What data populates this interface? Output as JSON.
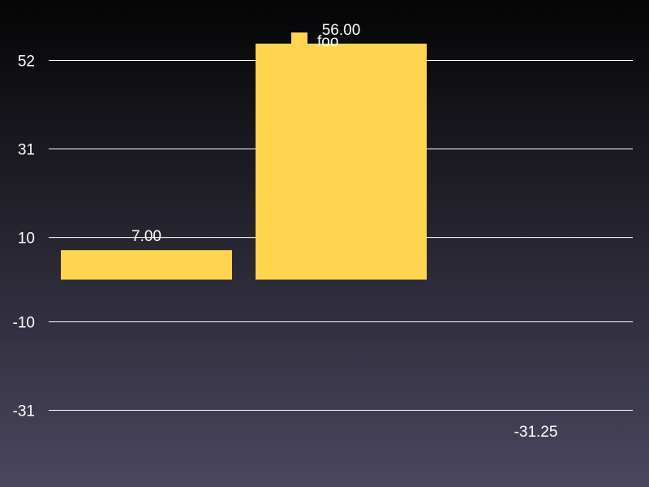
{
  "chart_data": {
    "type": "bar",
    "categories": [
      "",
      "",
      ""
    ],
    "series": [
      {
        "name": "foo",
        "values": [
          7.0,
          56.0,
          -31.25
        ],
        "value_labels": [
          "7.00",
          "56.00",
          "-31.25"
        ],
        "color": "#FFD54F"
      }
    ],
    "yticks": [
      52,
      31,
      10,
      -10,
      -31
    ],
    "ytick_labels": [
      "52",
      "31",
      "10",
      "-10",
      "-31"
    ],
    "ylim": [
      -41.5,
      62.5
    ],
    "grid": true,
    "legend": "top-center",
    "title": "",
    "xlabel": "",
    "ylabel": ""
  }
}
